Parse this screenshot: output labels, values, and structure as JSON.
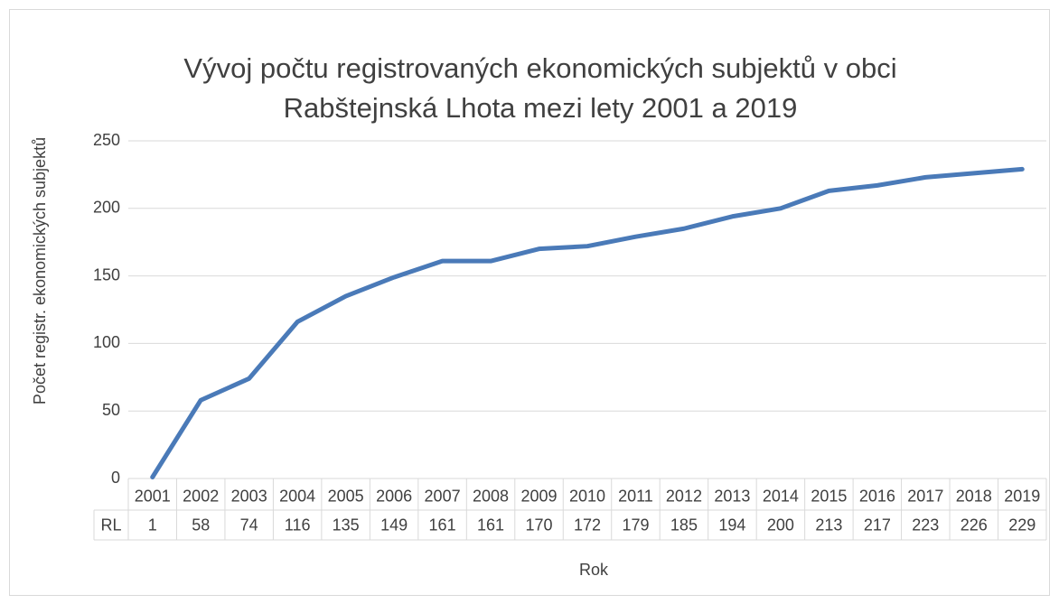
{
  "chart_data": {
    "type": "line",
    "title": [
      "Vývoj počtu registrovaných ekonomických subjektů v obci",
      "Rabštejnská Lhota mezi lety 2001 a 2019"
    ],
    "y_label": "Počet registr. ekonomických subjektů",
    "x_label": "Rok",
    "categories": [
      "2001",
      "2002",
      "2003",
      "2004",
      "2005",
      "2006",
      "2007",
      "2008",
      "2009",
      "2010",
      "2011",
      "2012",
      "2013",
      "2014",
      "2015",
      "2016",
      "2017",
      "2018",
      "2019"
    ],
    "series": [
      {
        "name": "RL",
        "color": "#4a7ab8",
        "values": [
          1,
          58,
          74,
          116,
          135,
          149,
          161,
          161,
          170,
          172,
          179,
          185,
          194,
          200,
          213,
          217,
          223,
          226,
          229
        ]
      }
    ],
    "ylim": [
      0,
      250
    ],
    "yticks": [
      0,
      50,
      100,
      150,
      200,
      250
    ],
    "grid": true
  }
}
